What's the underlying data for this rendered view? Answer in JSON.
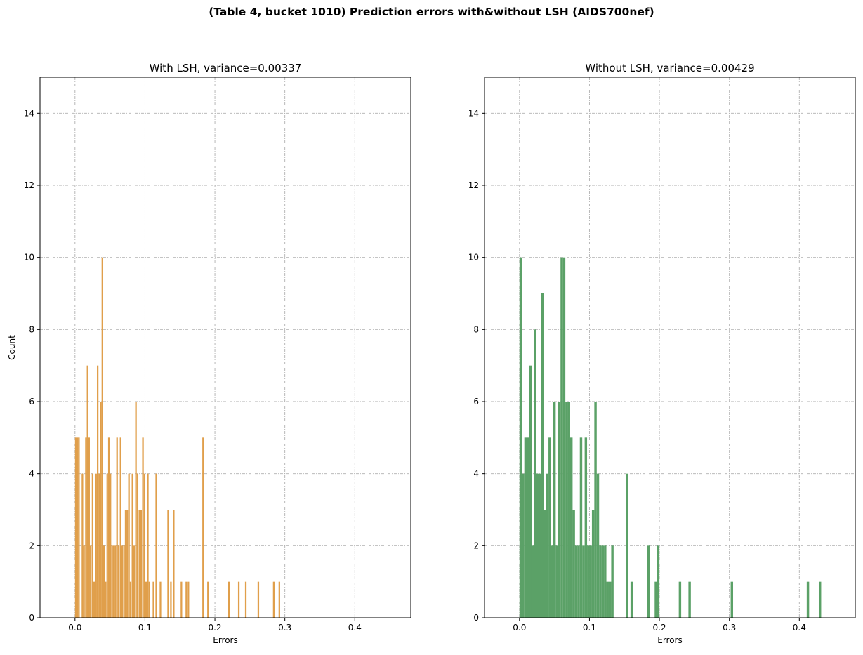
{
  "figure_title": "(Table 4, bucket 1010) Prediction errors with&without LSH (AIDS700nef)",
  "colors": {
    "with_lsh": "#e09f4b",
    "without_lsh": "#5ba167",
    "grid": "#b0b0b0"
  },
  "chart_data": [
    {
      "type": "bar",
      "title": "With LSH, variance=0.00337",
      "xlabel": "Errors",
      "ylabel": "Count",
      "xlim": [
        -0.05,
        0.48
      ],
      "ylim": [
        0,
        15
      ],
      "xticks": [
        0.0,
        0.1,
        0.2,
        0.3,
        0.4
      ],
      "xtick_labels": [
        "0.0",
        "0.1",
        "0.2",
        "0.3",
        "0.4"
      ],
      "yticks": [
        0,
        2,
        4,
        6,
        8,
        10,
        12,
        14
      ],
      "ytick_labels": [
        "0",
        "2",
        "4",
        "6",
        "8",
        "10",
        "12",
        "14"
      ],
      "grid": true,
      "bin_width": 0.00225,
      "bars": [
        {
          "x": 0.0,
          "y": 5
        },
        {
          "x": 0.0023,
          "y": 5
        },
        {
          "x": 0.0045,
          "y": 5
        },
        {
          "x": 0.0095,
          "y": 4
        },
        {
          "x": 0.0118,
          "y": 2
        },
        {
          "x": 0.0145,
          "y": 5
        },
        {
          "x": 0.0168,
          "y": 7
        },
        {
          "x": 0.019,
          "y": 5
        },
        {
          "x": 0.0213,
          "y": 2
        },
        {
          "x": 0.024,
          "y": 4
        },
        {
          "x": 0.0263,
          "y": 1
        },
        {
          "x": 0.029,
          "y": 4
        },
        {
          "x": 0.0313,
          "y": 7
        },
        {
          "x": 0.0335,
          "y": 4
        },
        {
          "x": 0.0358,
          "y": 6
        },
        {
          "x": 0.038,
          "y": 10
        },
        {
          "x": 0.0403,
          "y": 2
        },
        {
          "x": 0.0425,
          "y": 1
        },
        {
          "x": 0.045,
          "y": 4
        },
        {
          "x": 0.0473,
          "y": 5
        },
        {
          "x": 0.0495,
          "y": 4
        },
        {
          "x": 0.052,
          "y": 2
        },
        {
          "x": 0.0543,
          "y": 2
        },
        {
          "x": 0.0565,
          "y": 2
        },
        {
          "x": 0.059,
          "y": 5
        },
        {
          "x": 0.0613,
          "y": 2
        },
        {
          "x": 0.064,
          "y": 5
        },
        {
          "x": 0.0663,
          "y": 2
        },
        {
          "x": 0.069,
          "y": 2
        },
        {
          "x": 0.0713,
          "y": 3
        },
        {
          "x": 0.0735,
          "y": 3
        },
        {
          "x": 0.076,
          "y": 4
        },
        {
          "x": 0.0783,
          "y": 1
        },
        {
          "x": 0.081,
          "y": 4
        },
        {
          "x": 0.0833,
          "y": 2
        },
        {
          "x": 0.086,
          "y": 6
        },
        {
          "x": 0.0883,
          "y": 4
        },
        {
          "x": 0.091,
          "y": 3
        },
        {
          "x": 0.0933,
          "y": 3
        },
        {
          "x": 0.096,
          "y": 5
        },
        {
          "x": 0.0983,
          "y": 4
        },
        {
          "x": 0.1005,
          "y": 1
        },
        {
          "x": 0.103,
          "y": 4
        },
        {
          "x": 0.1053,
          "y": 1
        },
        {
          "x": 0.111,
          "y": 1
        },
        {
          "x": 0.115,
          "y": 4
        },
        {
          "x": 0.121,
          "y": 1
        },
        {
          "x": 0.132,
          "y": 3
        },
        {
          "x": 0.136,
          "y": 1
        },
        {
          "x": 0.14,
          "y": 3
        },
        {
          "x": 0.151,
          "y": 1
        },
        {
          "x": 0.158,
          "y": 1
        },
        {
          "x": 0.161,
          "y": 1
        },
        {
          "x": 0.182,
          "y": 5
        },
        {
          "x": 0.189,
          "y": 1
        },
        {
          "x": 0.219,
          "y": 1
        },
        {
          "x": 0.233,
          "y": 1
        },
        {
          "x": 0.243,
          "y": 1
        },
        {
          "x": 0.261,
          "y": 1
        },
        {
          "x": 0.283,
          "y": 1
        },
        {
          "x": 0.291,
          "y": 1
        }
      ]
    },
    {
      "type": "bar",
      "title": "Without LSH, variance=0.00429",
      "xlabel": "Errors",
      "ylabel": "",
      "xlim": [
        -0.05,
        0.48
      ],
      "ylim": [
        0,
        15
      ],
      "xticks": [
        0.0,
        0.1,
        0.2,
        0.3,
        0.4
      ],
      "xtick_labels": [
        "0.0",
        "0.1",
        "0.2",
        "0.3",
        "0.4"
      ],
      "yticks": [
        0,
        2,
        4,
        6,
        8,
        10,
        12,
        14
      ],
      "ytick_labels": [
        "0",
        "2",
        "4",
        "6",
        "8",
        "10",
        "12",
        "14"
      ],
      "grid": true,
      "bin_width": 0.00345,
      "bars": [
        {
          "x": 0.0,
          "y": 10
        },
        {
          "x": 0.00345,
          "y": 4
        },
        {
          "x": 0.0069,
          "y": 5
        },
        {
          "x": 0.01035,
          "y": 5
        },
        {
          "x": 0.0138,
          "y": 7
        },
        {
          "x": 0.01725,
          "y": 2
        },
        {
          "x": 0.0207,
          "y": 8
        },
        {
          "x": 0.02415,
          "y": 4
        },
        {
          "x": 0.0276,
          "y": 4
        },
        {
          "x": 0.03105,
          "y": 9
        },
        {
          "x": 0.0345,
          "y": 3
        },
        {
          "x": 0.03795,
          "y": 4
        },
        {
          "x": 0.0414,
          "y": 5
        },
        {
          "x": 0.04485,
          "y": 2
        },
        {
          "x": 0.0483,
          "y": 6
        },
        {
          "x": 0.05175,
          "y": 2
        },
        {
          "x": 0.0552,
          "y": 6
        },
        {
          "x": 0.05865,
          "y": 10
        },
        {
          "x": 0.0621,
          "y": 10
        },
        {
          "x": 0.06555,
          "y": 6
        },
        {
          "x": 0.069,
          "y": 6
        },
        {
          "x": 0.07245,
          "y": 5
        },
        {
          "x": 0.0759,
          "y": 3
        },
        {
          "x": 0.07935,
          "y": 2
        },
        {
          "x": 0.0828,
          "y": 2
        },
        {
          "x": 0.08625,
          "y": 5
        },
        {
          "x": 0.0897,
          "y": 2
        },
        {
          "x": 0.09315,
          "y": 5
        },
        {
          "x": 0.0966,
          "y": 2
        },
        {
          "x": 0.10005,
          "y": 2
        },
        {
          "x": 0.1035,
          "y": 3
        },
        {
          "x": 0.10695,
          "y": 6
        },
        {
          "x": 0.1104,
          "y": 4
        },
        {
          "x": 0.11385,
          "y": 2
        },
        {
          "x": 0.1173,
          "y": 2
        },
        {
          "x": 0.12075,
          "y": 2
        },
        {
          "x": 0.1242,
          "y": 1
        },
        {
          "x": 0.12765,
          "y": 1
        },
        {
          "x": 0.1311,
          "y": 2
        },
        {
          "x": 0.1518,
          "y": 4
        },
        {
          "x": 0.1587,
          "y": 1
        },
        {
          "x": 0.1828,
          "y": 2
        },
        {
          "x": 0.1932,
          "y": 1
        },
        {
          "x": 0.1966,
          "y": 2
        },
        {
          "x": 0.2277,
          "y": 1
        },
        {
          "x": 0.2415,
          "y": 1
        },
        {
          "x": 0.3019,
          "y": 1
        },
        {
          "x": 0.4106,
          "y": 1
        },
        {
          "x": 0.4278,
          "y": 1
        }
      ]
    }
  ]
}
